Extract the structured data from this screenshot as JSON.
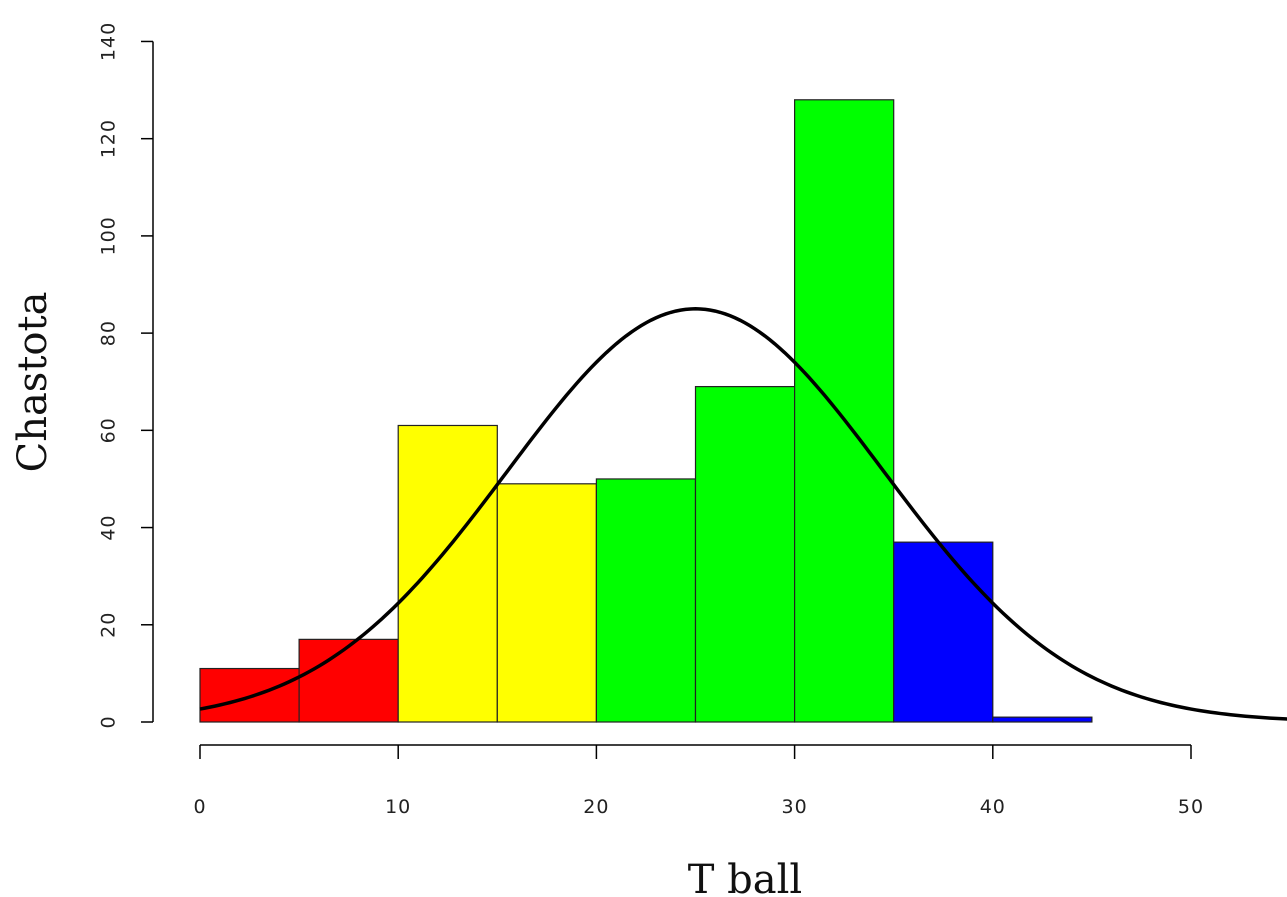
{
  "chart_data": {
    "type": "bar",
    "title": "",
    "xlabel": "T ball",
    "ylabel": "Chastota",
    "xlim": [
      0,
      55
    ],
    "ylim": [
      0,
      140
    ],
    "x_ticks": [
      0,
      10,
      20,
      30,
      40,
      50
    ],
    "y_ticks": [
      0,
      20,
      40,
      60,
      80,
      100,
      120,
      140
    ],
    "bins": [
      {
        "from": 0,
        "to": 5,
        "count": 11,
        "color": "#ff0000"
      },
      {
        "from": 5,
        "to": 10,
        "count": 17,
        "color": "#ff0000"
      },
      {
        "from": 10,
        "to": 15,
        "count": 61,
        "color": "#ffff00"
      },
      {
        "from": 15,
        "to": 20,
        "count": 49,
        "color": "#ffff00"
      },
      {
        "from": 20,
        "to": 25,
        "count": 50,
        "color": "#00ff00"
      },
      {
        "from": 25,
        "to": 30,
        "count": 69,
        "color": "#00ff00"
      },
      {
        "from": 30,
        "to": 35,
        "count": 128,
        "color": "#00ff00"
      },
      {
        "from": 35,
        "to": 40,
        "count": 37,
        "color": "#0000ff"
      },
      {
        "from": 40,
        "to": 45,
        "count": 1,
        "color": "#0000ff"
      }
    ],
    "curve": {
      "type": "normal-density",
      "mean": 25,
      "sd": 9.5,
      "peak": 85,
      "color": "#000000",
      "x_range": [
        0,
        55
      ]
    },
    "grid": false,
    "legend": "none"
  }
}
